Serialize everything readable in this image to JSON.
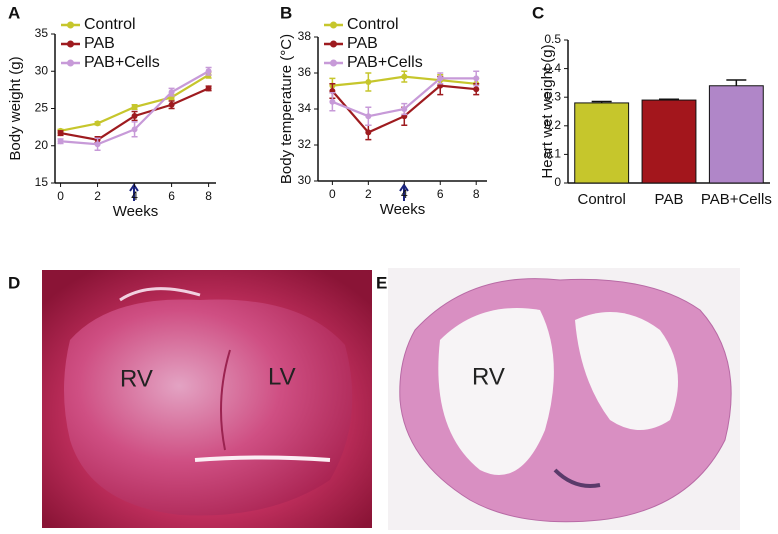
{
  "chart_data": [
    {
      "type": "line",
      "panel": "A",
      "ylabel": "Body weight (g)",
      "xlabel": "Weeks",
      "x": [
        0,
        2,
        4,
        6,
        8
      ],
      "xlim": [
        -0.3,
        8.4
      ],
      "xticks": [
        0,
        2,
        4,
        6,
        8
      ],
      "ylim": [
        15,
        35
      ],
      "yticks": [
        15,
        20,
        25,
        30,
        35
      ],
      "series": [
        {
          "name": "Control",
          "color": "#c6c62c",
          "values": [
            22.0,
            23.0,
            25.2,
            26.5,
            29.5
          ],
          "errors": [
            0.2,
            0.2,
            0.3,
            0.3,
            0.4
          ]
        },
        {
          "name": "PAB",
          "color": "#9e1b1f",
          "values": [
            21.7,
            20.8,
            24.0,
            25.5,
            27.7
          ],
          "errors": [
            0.3,
            0.4,
            0.6,
            0.5,
            0.3
          ]
        },
        {
          "name": "PAB+Cells",
          "color": "#c79ad8",
          "values": [
            20.6,
            20.2,
            22.2,
            27.2,
            30.0
          ],
          "errors": [
            0.3,
            0.8,
            1.0,
            0.5,
            0.5
          ]
        }
      ]
    },
    {
      "type": "line",
      "panel": "B",
      "ylabel": "Body temperature (°C)",
      "xlabel": "Weeks",
      "x": [
        0,
        2,
        4,
        6,
        8
      ],
      "xlim": [
        -0.8,
        8.6
      ],
      "xticks": [
        0,
        2,
        4,
        6,
        8
      ],
      "ylim": [
        30,
        38
      ],
      "yticks": [
        30,
        32,
        34,
        36,
        38
      ],
      "series": [
        {
          "name": "Control",
          "color": "#c6c62c",
          "values": [
            35.3,
            35.5,
            35.8,
            35.6,
            35.4
          ],
          "errors": [
            0.4,
            0.5,
            0.3,
            0.3,
            0.3
          ]
        },
        {
          "name": "PAB",
          "color": "#9e1b1f",
          "values": [
            35.0,
            32.7,
            33.6,
            35.3,
            35.1
          ],
          "errors": [
            0.4,
            0.4,
            0.5,
            0.5,
            0.3
          ]
        },
        {
          "name": "PAB+Cells",
          "color": "#c79ad8",
          "values": [
            34.4,
            33.6,
            34.0,
            35.7,
            35.7
          ],
          "errors": [
            0.5,
            0.5,
            0.3,
            0.3,
            0.4
          ]
        }
      ]
    },
    {
      "type": "bar",
      "panel": "C",
      "ylabel": "Heart wet weight (g)",
      "categories": [
        "Control",
        "PAB",
        "PAB+Cells"
      ],
      "values": [
        0.28,
        0.29,
        0.34
      ],
      "errors": [
        0.005,
        0.003,
        0.02
      ],
      "colors": [
        "#c6c62c",
        "#a3161c",
        "#b086c8"
      ],
      "ylim": [
        0,
        0.5
      ],
      "yticks": [
        0,
        0.1,
        0.2,
        0.3,
        0.4,
        0.5
      ]
    }
  ],
  "images": [
    {
      "panel": "D",
      "labels": [
        "RV",
        "LV"
      ]
    },
    {
      "panel": "E",
      "labels": [
        "RV"
      ]
    }
  ]
}
